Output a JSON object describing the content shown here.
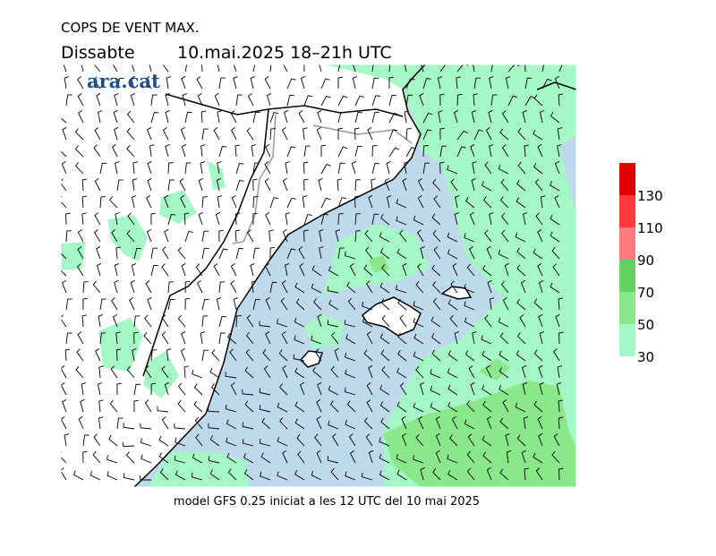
{
  "header": {
    "title": "COPS DE VENT MAX.",
    "day": "Dissabte",
    "date": "10.mai.2025 18–21h UTC",
    "logo": "ara.cat"
  },
  "footer": "model GFS 0.25 iniciat a les 12 UTC del 10 mai 2025",
  "legend": {
    "levels": [
      30,
      50,
      70,
      90,
      110,
      130
    ],
    "colors": [
      "#a6f7c6",
      "#8ae88a",
      "#63d263",
      "#ff7a7a",
      "#ff3a3a",
      "#e00000"
    ]
  }
}
